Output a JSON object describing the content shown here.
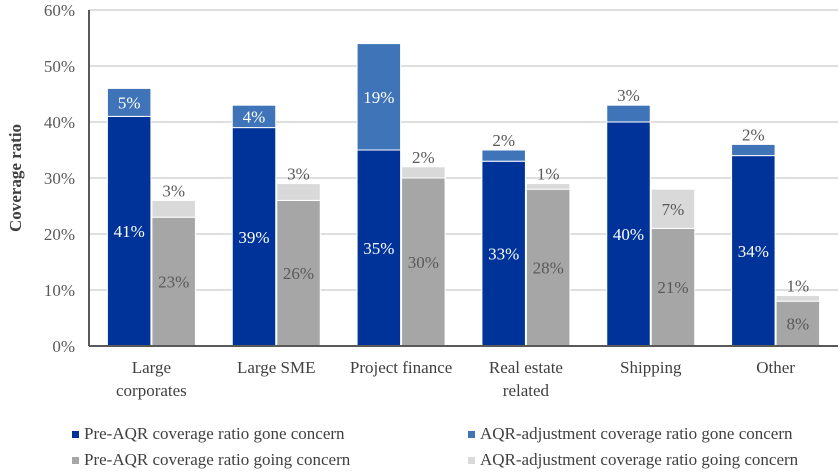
{
  "chart_data": {
    "type": "bar",
    "subtype": "stacked-grouped",
    "title": "",
    "xlabel": "",
    "ylabel": "Coverage ratio",
    "ylim": [
      0,
      60
    ],
    "yticks": [
      0,
      10,
      20,
      30,
      40,
      50,
      60
    ],
    "ytick_labels": [
      "0%",
      "10%",
      "20%",
      "30%",
      "40%",
      "50%",
      "60%"
    ],
    "grid": true,
    "legend_position": "bottom",
    "categories": [
      [
        "Large",
        "corporates"
      ],
      [
        "Large SME"
      ],
      [
        "Project finance"
      ],
      [
        "Real estate",
        "related"
      ],
      [
        "Shipping"
      ],
      [
        "Other"
      ]
    ],
    "groups": [
      {
        "name": "gone concern",
        "series": [
          {
            "name": "Pre-AQR coverage ratio gone concern",
            "color": "#003399",
            "label_color": "#ffffff",
            "values": [
              41,
              39,
              35,
              33,
              40,
              34
            ],
            "labels": [
              "41%",
              "39%",
              "35%",
              "33%",
              "40%",
              "34%"
            ]
          },
          {
            "name": "AQR-adjustment coverage ratio gone concern",
            "color": "#3F74B8",
            "label_color": "#ffffff",
            "values": [
              5,
              4,
              19,
              2,
              3,
              2
            ],
            "labels": [
              "5%",
              "4%",
              "19%",
              "2%",
              "3%",
              "2%"
            ]
          }
        ]
      },
      {
        "name": "going concern",
        "series": [
          {
            "name": "Pre-AQR coverage ratio going concern",
            "color": "#A6A6A6",
            "label_color": "#595959",
            "values": [
              23,
              26,
              30,
              28,
              21,
              8
            ],
            "labels": [
              "23%",
              "26%",
              "30%",
              "28%",
              "21%",
              "8%"
            ]
          },
          {
            "name": "AQR-adjustment coverage ratio going concern",
            "color": "#D9D9D9",
            "label_color": "#595959",
            "values": [
              3,
              3,
              2,
              1,
              7,
              1
            ],
            "labels": [
              "3%",
              "3%",
              "2%",
              "1%",
              "7%",
              "1%"
            ]
          }
        ]
      }
    ],
    "legend": [
      {
        "label": "Pre-AQR coverage ratio gone concern",
        "color": "#003399"
      },
      {
        "label": "AQR-adjustment coverage ratio gone concern",
        "color": "#3F74B8"
      },
      {
        "label": "Pre-AQR coverage ratio going concern",
        "color": "#A6A6A6"
      },
      {
        "label": "AQR-adjustment coverage ratio going concern",
        "color": "#D9D9D9"
      }
    ]
  }
}
